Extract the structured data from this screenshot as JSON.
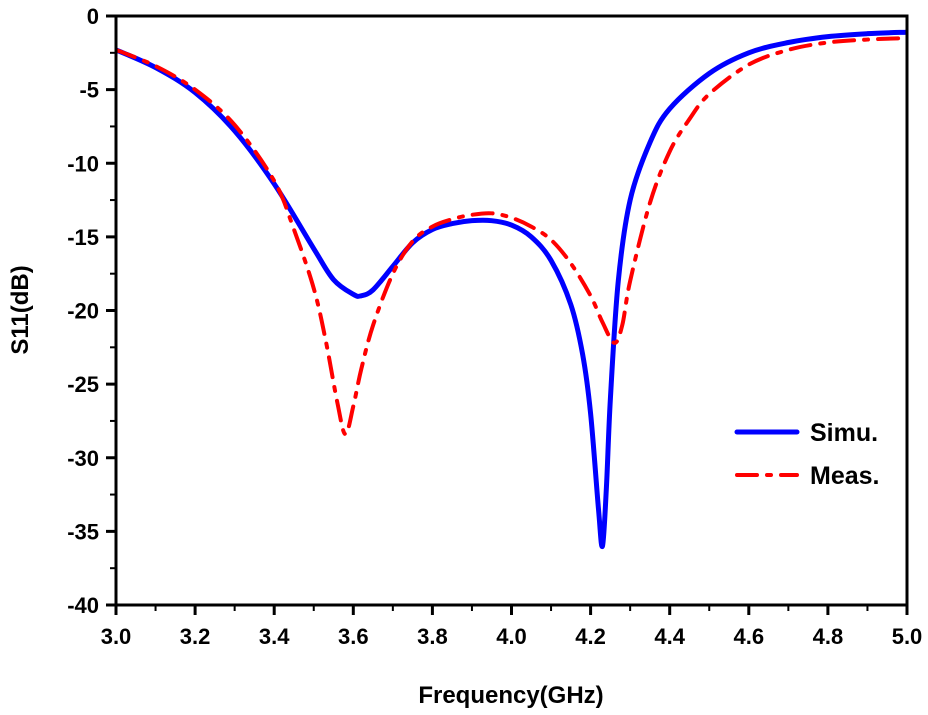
{
  "chart_data": {
    "type": "line",
    "xlabel": "Frequency(GHz)",
    "ylabel": "S11(dB)",
    "xlim": [
      3.0,
      5.0
    ],
    "ylim": [
      -40,
      0
    ],
    "x_ticks": [
      "3.0",
      "3.2",
      "3.4",
      "3.6",
      "3.8",
      "4.0",
      "4.2",
      "4.4",
      "4.6",
      "4.8",
      "5.0"
    ],
    "y_ticks": [
      "0",
      "-5",
      "-10",
      "-15",
      "-20",
      "-25",
      "-30",
      "-35",
      "-40"
    ],
    "grid": false,
    "legend_position": "right",
    "series": [
      {
        "name": "Simu.",
        "color": "#0000ff",
        "style": "solid",
        "x": [
          3.0,
          3.1,
          3.2,
          3.3,
          3.4,
          3.5,
          3.55,
          3.6,
          3.62,
          3.65,
          3.7,
          3.75,
          3.8,
          3.85,
          3.9,
          3.95,
          4.0,
          4.05,
          4.1,
          4.15,
          4.18,
          4.2,
          4.22,
          4.23,
          4.24,
          4.25,
          4.27,
          4.3,
          4.35,
          4.4,
          4.5,
          4.6,
          4.7,
          4.8,
          4.9,
          5.0
        ],
        "y": [
          -2.3,
          -3.5,
          -5.2,
          -7.8,
          -11.4,
          -15.8,
          -17.9,
          -18.9,
          -19.0,
          -18.6,
          -17.0,
          -15.4,
          -14.5,
          -14.1,
          -13.9,
          -13.9,
          -14.2,
          -15.0,
          -16.6,
          -19.6,
          -23.0,
          -27.0,
          -33.5,
          -36.0,
          -32.0,
          -26.0,
          -18.0,
          -12.5,
          -8.6,
          -6.3,
          -3.9,
          -2.5,
          -1.8,
          -1.4,
          -1.2,
          -1.1
        ]
      },
      {
        "name": "Meas.",
        "color": "#ff0000",
        "style": "dash-dot",
        "x": [
          3.0,
          3.1,
          3.2,
          3.3,
          3.4,
          3.45,
          3.5,
          3.53,
          3.56,
          3.58,
          3.6,
          3.62,
          3.65,
          3.7,
          3.75,
          3.8,
          3.85,
          3.9,
          3.95,
          4.0,
          4.05,
          4.1,
          4.15,
          4.2,
          4.23,
          4.26,
          4.28,
          4.3,
          4.35,
          4.4,
          4.45,
          4.5,
          4.6,
          4.7,
          4.8,
          4.9,
          5.0
        ],
        "y": [
          -2.3,
          -3.4,
          -5.0,
          -7.4,
          -11.2,
          -14.5,
          -18.5,
          -22.0,
          -26.3,
          -28.4,
          -26.5,
          -24.0,
          -21.0,
          -17.5,
          -15.3,
          -14.3,
          -13.8,
          -13.5,
          -13.4,
          -13.7,
          -14.3,
          -15.2,
          -16.8,
          -19.0,
          -20.8,
          -22.2,
          -21.0,
          -18.0,
          -12.7,
          -9.2,
          -7.0,
          -5.3,
          -3.3,
          -2.3,
          -1.8,
          -1.6,
          -1.5
        ]
      }
    ]
  }
}
